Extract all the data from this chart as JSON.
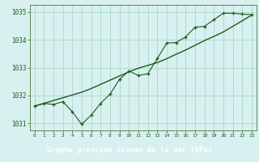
{
  "title": "Graphe pression niveau de la mer (hPa)",
  "bg_plot": "#d8f0f0",
  "bg_title_bar": "#4a7a4a",
  "grid_color": "#a8d8c8",
  "line_color": "#1a5c1a",
  "x_values": [
    0,
    1,
    2,
    3,
    4,
    5,
    6,
    7,
    8,
    9,
    10,
    11,
    12,
    13,
    14,
    15,
    16,
    17,
    18,
    19,
    20,
    21,
    22,
    23
  ],
  "y_measured": [
    1031.62,
    1031.72,
    1031.68,
    1031.78,
    1031.42,
    1030.97,
    1031.3,
    1031.72,
    1032.05,
    1032.58,
    1032.88,
    1032.72,
    1032.78,
    1033.32,
    1033.88,
    1033.9,
    1034.1,
    1034.45,
    1034.48,
    1034.72,
    1034.95,
    1034.95,
    1034.92,
    1034.9
  ],
  "y_trend": [
    1031.62,
    1031.72,
    1031.82,
    1031.92,
    1032.02,
    1032.12,
    1032.25,
    1032.4,
    1032.55,
    1032.7,
    1032.85,
    1032.98,
    1033.08,
    1033.18,
    1033.32,
    1033.48,
    1033.63,
    1033.8,
    1033.97,
    1034.12,
    1034.28,
    1034.48,
    1034.68,
    1034.88
  ],
  "ylim": [
    1030.75,
    1035.25
  ],
  "yticks": [
    1031,
    1032,
    1033,
    1034,
    1035
  ],
  "xlim": [
    -0.5,
    23.5
  ],
  "xticks": [
    0,
    1,
    2,
    3,
    4,
    5,
    6,
    7,
    8,
    9,
    10,
    11,
    12,
    13,
    14,
    15,
    16,
    17,
    18,
    19,
    20,
    21,
    22,
    23
  ],
  "title_color": "#ffffff",
  "title_bg": "#2d6b2d",
  "tick_label_color": "#1a5c1a",
  "spine_color": "#5a8a5a"
}
